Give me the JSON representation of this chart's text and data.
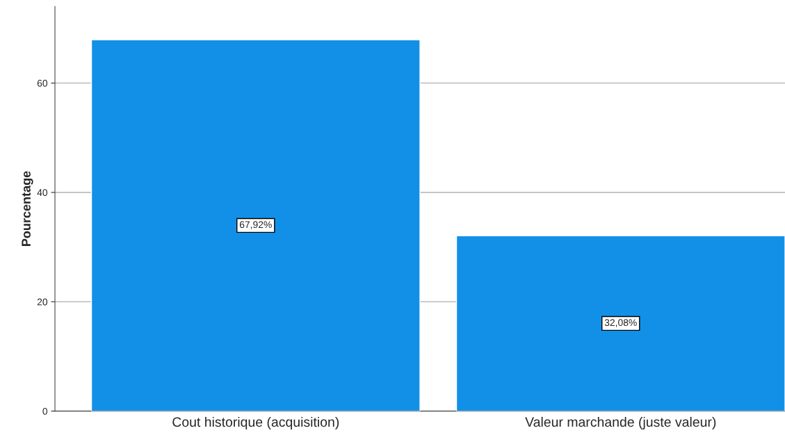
{
  "chart_data": {
    "type": "bar",
    "ylabel": "Pourcentage",
    "categories": [
      "Cout historique (acquisition)",
      "Valeur marchande (juste valeur)"
    ],
    "values": [
      67.92,
      32.08
    ],
    "value_labels": [
      "67,92%",
      "32,08%"
    ],
    "color": "#1290e8",
    "ylim": [
      0,
      74
    ],
    "yticks": [
      0,
      20,
      40,
      60
    ],
    "grid": "y",
    "legend": false
  }
}
